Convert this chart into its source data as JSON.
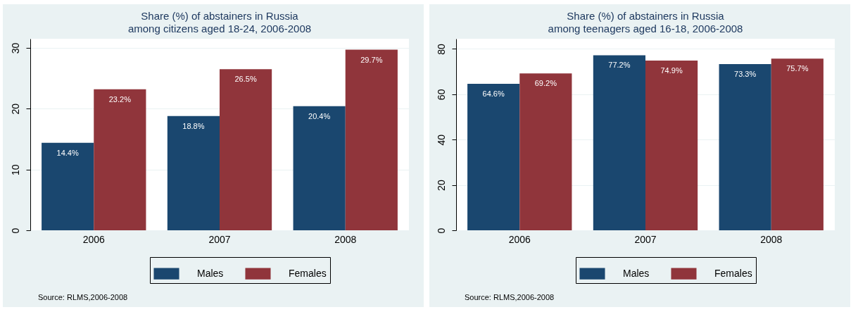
{
  "chart_data": [
    {
      "type": "bar",
      "title": "Share (%) of abstainers in Russia",
      "subtitle": "among citizens aged 18-24, 2006-2008",
      "categories": [
        "2006",
        "2007",
        "2008"
      ],
      "series": [
        {
          "name": "Males",
          "color": "#1a476f",
          "values": [
            14.4,
            18.8,
            20.4
          ],
          "value_labels": [
            "14.4%",
            "18.8%",
            "20.4%"
          ]
        },
        {
          "name": "Females",
          "color": "#90353b",
          "values": [
            23.2,
            26.5,
            29.7
          ],
          "value_labels": [
            "23.2%",
            "26.5%",
            "29.7%"
          ]
        }
      ],
      "ylim": [
        0,
        31.5
      ],
      "yticks": [
        0,
        10,
        20,
        30
      ],
      "grid": "y",
      "legend": "bottom",
      "annotations": [
        "Source: RLMS,2006-2008"
      ]
    },
    {
      "type": "bar",
      "title": "Share (%) of abstainers in Russia",
      "subtitle": "among teenagers aged 16-18, 2006-2008",
      "categories": [
        "2006",
        "2007",
        "2008"
      ],
      "series": [
        {
          "name": "Males",
          "color": "#1a476f",
          "values": [
            64.6,
            77.2,
            73.3
          ],
          "value_labels": [
            "64.6%",
            "77.2%",
            "73.3%"
          ]
        },
        {
          "name": "Females",
          "color": "#90353b",
          "values": [
            69.2,
            74.9,
            75.7
          ],
          "value_labels": [
            "69.2%",
            "74.9%",
            "75.7%"
          ]
        }
      ],
      "ylim": [
        0,
        84.5
      ],
      "yticks": [
        0,
        20,
        40,
        60,
        80
      ],
      "grid": "y",
      "legend": "bottom",
      "annotations": [
        "Source: RLMS,2006-2008"
      ]
    }
  ]
}
